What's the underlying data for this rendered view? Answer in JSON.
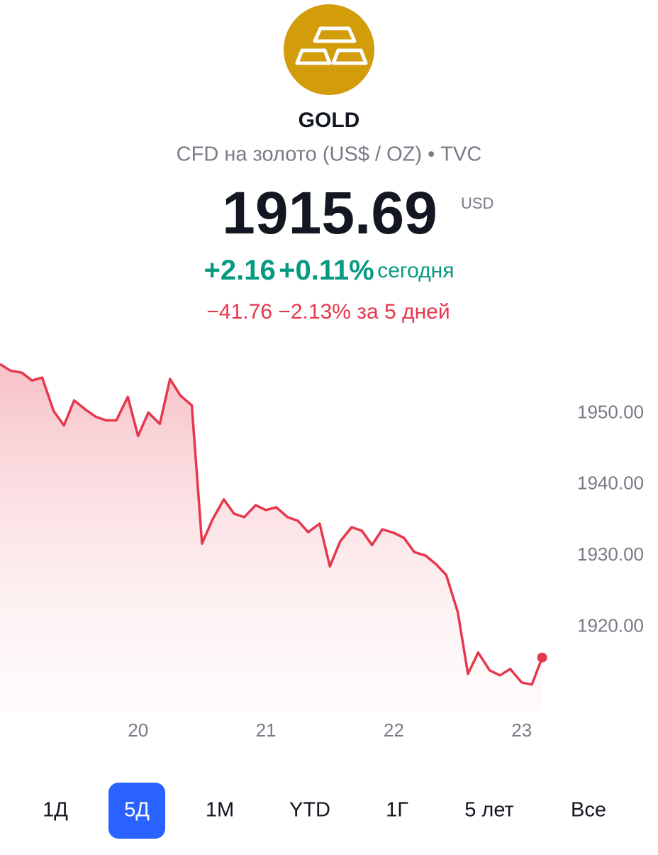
{
  "header": {
    "title": "GOLD",
    "subtitle": "CFD на золото (US$ / OZ) • TVC",
    "price": "1915.69",
    "currency": "USD",
    "change_today": {
      "abs": "+2.16",
      "pct": "+0.11%",
      "label": "сегодня"
    },
    "change_5d": {
      "abs": "−41.76",
      "pct": "−2.13%",
      "label": "за 5 дней"
    }
  },
  "chart_data": {
    "type": "line",
    "color": "#e5384d",
    "x": [
      18.92,
      19.0,
      19.09,
      19.17,
      19.25,
      19.34,
      19.42,
      19.5,
      19.59,
      19.67,
      19.75,
      19.83,
      19.92,
      20.0,
      20.08,
      20.17,
      20.25,
      20.33,
      20.42,
      20.5,
      20.58,
      20.67,
      20.75,
      20.83,
      20.92,
      21.0,
      21.08,
      21.17,
      21.25,
      21.33,
      21.42,
      21.5,
      21.58,
      21.67,
      21.75,
      21.83,
      21.91,
      22.0,
      22.08,
      22.16,
      22.25,
      22.33,
      22.41,
      22.5,
      22.58,
      22.66,
      22.75,
      22.83,
      22.91,
      23.0,
      23.08,
      23.16
    ],
    "values": [
      1956.9,
      1956.0,
      1955.7,
      1954.6,
      1955.0,
      1950.3,
      1948.3,
      1951.8,
      1950.5,
      1949.5,
      1949.0,
      1949.0,
      1952.3,
      1946.8,
      1950.1,
      1948.5,
      1954.8,
      1952.5,
      1951.1,
      1931.7,
      1935.0,
      1937.9,
      1935.9,
      1935.4,
      1937.1,
      1936.4,
      1936.8,
      1935.4,
      1934.9,
      1933.3,
      1934.5,
      1928.5,
      1932.0,
      1934.0,
      1933.5,
      1931.5,
      1933.7,
      1933.2,
      1932.5,
      1930.5,
      1930.0,
      1928.8,
      1927.3,
      1922.1,
      1913.4,
      1916.4,
      1913.9,
      1913.2,
      1914.1,
      1912.2,
      1911.9,
      1915.7
    ],
    "xlim": [
      18.92,
      23.24
    ],
    "ylim": [
      1908,
      1960
    ],
    "xticks": [
      20,
      21,
      22,
      23
    ],
    "yticks": [
      {
        "value": 1950,
        "label": "1950.00"
      },
      {
        "value": 1940,
        "label": "1940.00"
      },
      {
        "value": 1930,
        "label": "1930.00"
      },
      {
        "value": 1920,
        "label": "1920.00"
      }
    ],
    "grid": false
  },
  "periods": [
    "1Д",
    "5Д",
    "1M",
    "YTD",
    "1Г",
    "5 лет",
    "Все"
  ],
  "selected_period": 1
}
